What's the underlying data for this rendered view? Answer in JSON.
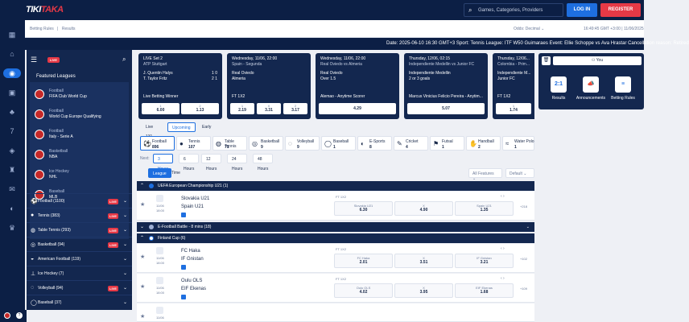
{
  "header": {
    "logo_a": "TIKI",
    "logo_b": "TAKA",
    "search_placeholder": "Games, Categories, Providers",
    "login": "LOG IN",
    "register": "REGISTER"
  },
  "subheader": {
    "crumb_a": "Betting Rules",
    "crumb_b": "Results",
    "odds_format": "Odds:  Decimal ⌄",
    "clock": "16:49:45 GMT +3:00   |   11/06/2025"
  },
  "ticker": "Date: 2025-06-10 16:30 GMT+3 Sport: Tennis League: ITF W50 Guimaraes Event: Ellie Schoppe vs Ava Hrastar Cancellation reason: Retired",
  "sidebar": {
    "live_badge": "LIVE",
    "featured_title": "Featured Leagues",
    "featured": [
      {
        "cat": "Football",
        "name": "FIFA Club World Cup"
      },
      {
        "cat": "Football",
        "name": "World Cup Europe Qualifying"
      },
      {
        "cat": "Football",
        "name": "Italy - Serie A"
      },
      {
        "cat": "Basketball",
        "name": "NBA"
      },
      {
        "cat": "Ice Hockey",
        "name": "NHL"
      },
      {
        "cat": "Baseball",
        "name": "MLB"
      }
    ],
    "sports": [
      {
        "name": "Football  (1100)",
        "live": "LIVE"
      },
      {
        "name": "Tennis  (383)",
        "live": "LIVE"
      },
      {
        "name": "Table Tennis  (293)",
        "live": "LIVE"
      },
      {
        "name": "Basketball  (94)",
        "live": "LIVE"
      },
      {
        "name": "American Football  (119)",
        "live": ""
      },
      {
        "name": "Ice Hockey  (7)",
        "live": ""
      },
      {
        "name": "Volleyball  (94)",
        "live": "LIVE"
      },
      {
        "name": "Baseball  (37)",
        "live": ""
      }
    ]
  },
  "cards": [
    {
      "hd": "LIVE  Set 2",
      "sub": "ATP Stuttgart",
      "t1": "J. Quentin Halys",
      "t2": "T. Taylor Fritz",
      "s1": "1   0",
      "s2": "2   1",
      "mk": "Live Betting Winner",
      "o1l": "1",
      "o1v": "6.00",
      "o2l": "2",
      "o2v": "1.13",
      "o3l": "",
      "o3v": ""
    },
    {
      "hd": "Wednesday, 11/06, 22:00",
      "sub": "Spain - Segunda",
      "t1": "Real Oviedo",
      "t2": "Almeria",
      "s1": "",
      "s2": "",
      "mk": "FT 1X2",
      "o1l": "1",
      "o1v": "2.19",
      "o2l": "X",
      "o2v": "3.31",
      "o3l": "2",
      "o3v": "3.17"
    },
    {
      "hd": "Wednesday, 11/06, 22:00",
      "sub": "Real Oviedo vs Almeria",
      "t1": "Real Oviedo",
      "t2": "Over 1.5",
      "s1": "",
      "s2": "",
      "mk": "Alemao - Anytime Scorer",
      "o1l": "",
      "o1v": "4.29",
      "o2l": "",
      "o2v": "",
      "o3l": "",
      "o3v": ""
    },
    {
      "hd": "Thursday, 12/06, 02:15",
      "sub": "Independiente Medellin vs Junior FC",
      "t1": "Independiente Medellin",
      "t2": "2 or 3 goals",
      "s1": "",
      "s2": "",
      "mk": "Marcus Vinicius Felicio Pereira - Anytim...",
      "o1l": "",
      "o1v": "5.07",
      "o2l": "",
      "o2v": "",
      "o3l": "",
      "o3v": ""
    },
    {
      "hd": "Thursday, 12/06...",
      "sub": "Colombia - Prim...",
      "t1": "Independiente M...",
      "t2": "Junior FC",
      "s1": "",
      "s2": "",
      "mk": "FT 1X2",
      "o1l": "1",
      "o1v": "1.74",
      "o2l": "",
      "o2v": "",
      "o3l": "",
      "o3v": ""
    }
  ],
  "tabs": [
    {
      "label": "Live  131"
    },
    {
      "label": "Upcoming"
    },
    {
      "label": "Early"
    }
  ],
  "tiles": [
    {
      "name": "Football",
      "count": "896"
    },
    {
      "name": "Tennis",
      "count": "107"
    },
    {
      "name": "Table Tennis",
      "count": "71"
    },
    {
      "name": "Basketball",
      "count": "9"
    },
    {
      "name": "Volleyball",
      "count": "9"
    },
    {
      "name": "Baseball",
      "count": "1"
    },
    {
      "name": "E-Sports",
      "count": "8"
    },
    {
      "name": "Cricket",
      "count": "4"
    },
    {
      "name": "Futsal",
      "count": "1"
    },
    {
      "name": "Handball",
      "count": "2"
    },
    {
      "name": "Water Polo",
      "count": "1"
    }
  ],
  "hours": {
    "next": "Next:",
    "items": [
      "3 Hours",
      "6 Hours",
      "12 Hours",
      "24 Hours",
      "48 Hours"
    ]
  },
  "view": {
    "league": "League",
    "time": "Time",
    "features": "All Features ⌄",
    "default": "Default ⌄"
  },
  "categories": [
    {
      "title": "UEFA European Championship U21 (1)",
      "extra": ""
    },
    {
      "title": "E-Football Battle - 8 mins (18)",
      "extra": "⌄"
    },
    {
      "title": "Finland Cup (6)",
      "extra": ""
    }
  ],
  "matches": [
    {
      "date": "11/06",
      "time": "18:00",
      "home": "Slovakia U21",
      "away": "Spain U21",
      "market": "FT 1X2",
      "o1l": "Slovakia U21",
      "o1v": "6.30",
      "o2l": "X",
      "o2v": "4.90",
      "o3l": "Spain U21",
      "o3v": "1.35",
      "more": "+218"
    },
    {
      "date": "11/06",
      "time": "18:00",
      "home": "FC Haka",
      "away": "IF Gnistan",
      "market": "FT 1X2",
      "o1l": "FC Haka",
      "o1v": "2.01",
      "o2l": "X",
      "o2v": "3.51",
      "o3l": "IF Gnistan",
      "o3v": "3.21",
      "more": "+102"
    },
    {
      "date": "11/06",
      "time": "18:00",
      "home": "Oulu OLS",
      "away": "EIF Ekenas",
      "market": "FT 1X2",
      "o1l": "Oulu OLS",
      "o1v": "4.02",
      "o2l": "X",
      "o2v": "3.95",
      "o3l": "EIF Ekenas",
      "o3v": "1.68",
      "more": "+109"
    },
    {
      "date": "11/06",
      "time": "",
      "home": "",
      "away": "",
      "market": "",
      "o1l": "",
      "o1v": "",
      "o2l": "",
      "o2v": "",
      "o3l": "",
      "o3v": "",
      "more": ""
    }
  ],
  "rightpanel": {
    "you": "You",
    "items": [
      {
        "icon": "2:1",
        "label": "Results"
      },
      {
        "icon": "📣",
        "label": "Announcements"
      },
      {
        "icon": "≡",
        "label": "Betting Rules"
      }
    ]
  }
}
